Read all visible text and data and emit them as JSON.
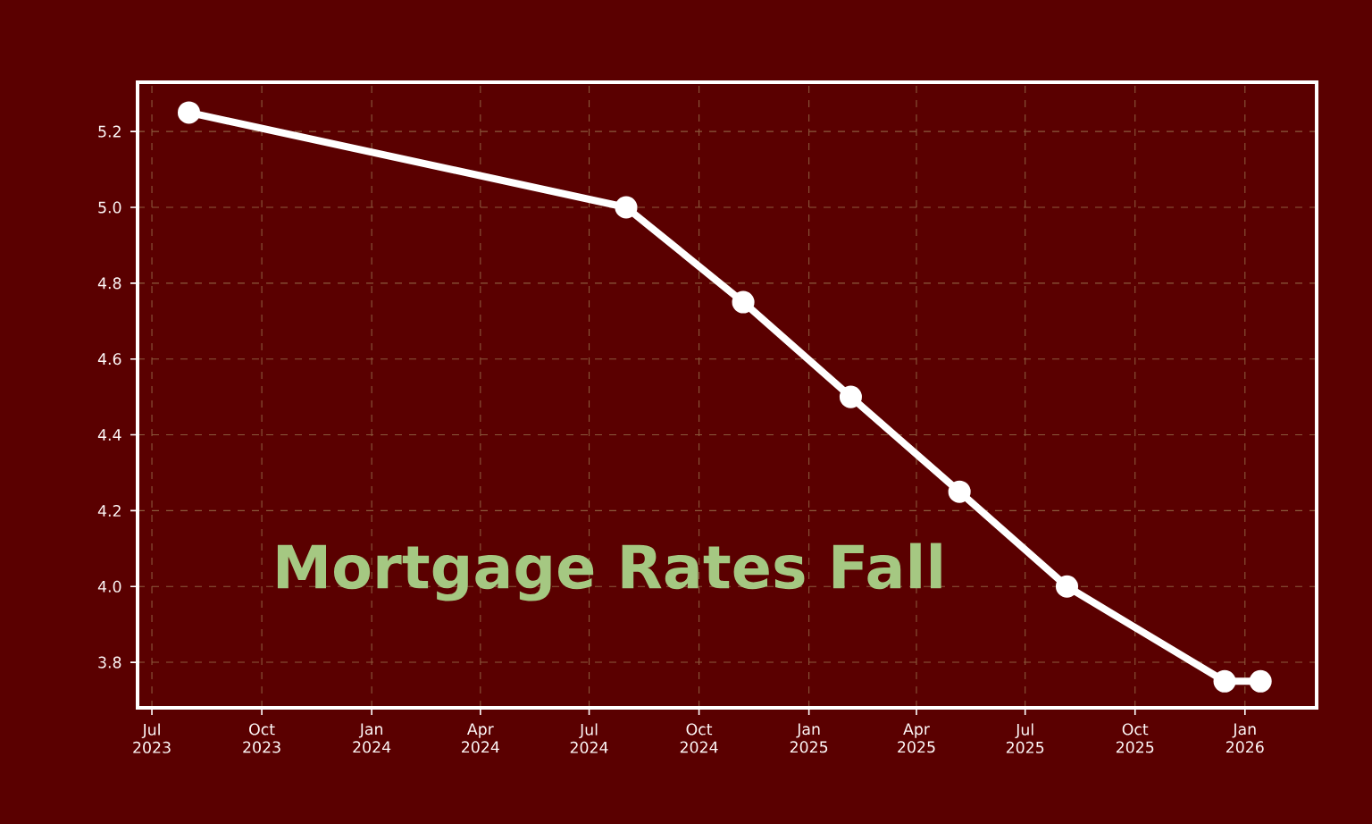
{
  "chart_data": {
    "type": "line",
    "x": [
      "2023-08-01",
      "2024-08-01",
      "2024-11-07",
      "2025-02-05",
      "2025-05-07",
      "2025-08-05",
      "2025-12-15",
      "2026-01-14"
    ],
    "series": [
      {
        "color": "#ffffff",
        "values": [
          5.25,
          5.0,
          4.75,
          4.5,
          4.25,
          4.0,
          3.75,
          3.75
        ]
      }
    ],
    "xlim": [
      "2023-06-19",
      "2026-03-02"
    ],
    "ylim": [
      3.68,
      5.33
    ],
    "xticks": [
      {
        "value": "2023-07-01",
        "label": "Jul 2023"
      },
      {
        "value": "2023-10-01",
        "label": "Oct 2023"
      },
      {
        "value": "2024-01-01",
        "label": "Jan 2024"
      },
      {
        "value": "2024-04-01",
        "label": "Apr 2024"
      },
      {
        "value": "2024-07-01",
        "label": "Jul 2024"
      },
      {
        "value": "2024-10-01",
        "label": "Oct 2024"
      },
      {
        "value": "2025-01-01",
        "label": "Jan 2025"
      },
      {
        "value": "2025-04-01",
        "label": "Apr 2025"
      },
      {
        "value": "2025-07-01",
        "label": "Jul 2025"
      },
      {
        "value": "2025-10-01",
        "label": "Oct 2025"
      },
      {
        "value": "2026-01-01",
        "label": "Jan 2026"
      }
    ],
    "yticks": [
      3.8,
      {
        "value": 4.0,
        "label": "4.0"
      },
      4.2,
      4.4,
      4.6,
      4.8,
      {
        "value": 5.0,
        "label": "5.0"
      },
      5.2
    ],
    "annotations": [
      "Mortgage Rates Fall"
    ],
    "grid": true,
    "marker": "circle",
    "line_style": "solid"
  }
}
